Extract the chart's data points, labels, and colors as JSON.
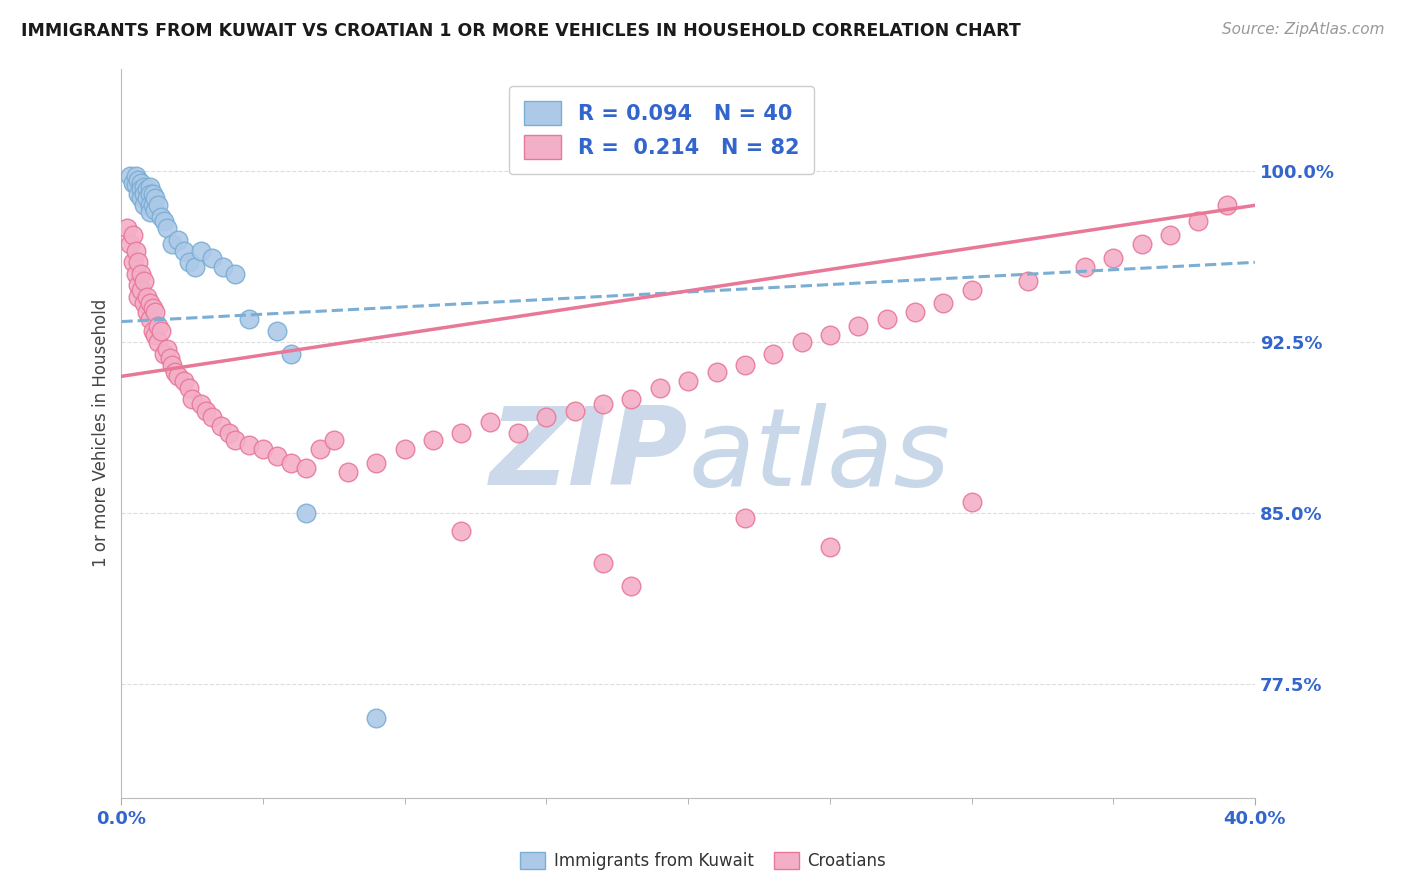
{
  "title": "IMMIGRANTS FROM KUWAIT VS CROATIAN 1 OR MORE VEHICLES IN HOUSEHOLD CORRELATION CHART",
  "source": "Source: ZipAtlas.com",
  "ylabel": "1 or more Vehicles in Household",
  "ytick_labels": [
    "77.5%",
    "85.0%",
    "92.5%",
    "100.0%"
  ],
  "ytick_values": [
    0.775,
    0.85,
    0.925,
    1.0
  ],
  "xlim": [
    0.0,
    0.4
  ],
  "ylim": [
    0.725,
    1.045
  ],
  "kuwait_R": 0.094,
  "kuwait_N": 40,
  "croatian_R": 0.214,
  "croatian_N": 82,
  "kuwait_color": "#adc9e8",
  "croatian_color": "#f4afc8",
  "kuwait_edge_color": "#7aaed4",
  "croatian_edge_color": "#e87898",
  "kuwait_line_color": "#7aaed4",
  "croatian_line_color": "#e87898",
  "watermark_zip_color": "#d8e8f5",
  "watermark_atlas_color": "#d0dff0",
  "title_color": "#1a1a1a",
  "source_color": "#999999",
  "axis_label_color": "#3366cc",
  "tick_color": "#888888",
  "grid_color": "#dddddd",
  "legend_text_color": "#3366cc",
  "bottom_legend_text_color": "#333333",
  "kuwait_x": [
    0.003,
    0.004,
    0.005,
    0.005,
    0.006,
    0.006,
    0.007,
    0.007,
    0.007,
    0.008,
    0.008,
    0.008,
    0.009,
    0.009,
    0.01,
    0.01,
    0.01,
    0.01,
    0.011,
    0.011,
    0.012,
    0.012,
    0.013,
    0.014,
    0.015,
    0.016,
    0.018,
    0.02,
    0.022,
    0.024,
    0.026,
    0.028,
    0.032,
    0.036,
    0.04,
    0.045,
    0.055,
    0.06,
    0.065,
    0.09
  ],
  "kuwait_y": [
    0.998,
    0.995,
    0.998,
    0.994,
    0.996,
    0.99,
    0.995,
    0.992,
    0.988,
    0.993,
    0.99,
    0.985,
    0.992,
    0.988,
    0.993,
    0.99,
    0.985,
    0.982,
    0.99,
    0.985,
    0.988,
    0.983,
    0.985,
    0.98,
    0.978,
    0.975,
    0.968,
    0.97,
    0.965,
    0.96,
    0.958,
    0.965,
    0.962,
    0.958,
    0.955,
    0.935,
    0.93,
    0.92,
    0.85,
    0.76
  ],
  "croatian_x": [
    0.002,
    0.003,
    0.004,
    0.004,
    0.005,
    0.005,
    0.006,
    0.006,
    0.006,
    0.007,
    0.007,
    0.008,
    0.008,
    0.009,
    0.009,
    0.01,
    0.01,
    0.011,
    0.011,
    0.012,
    0.012,
    0.013,
    0.013,
    0.014,
    0.015,
    0.016,
    0.017,
    0.018,
    0.019,
    0.02,
    0.022,
    0.024,
    0.025,
    0.028,
    0.03,
    0.032,
    0.035,
    0.038,
    0.04,
    0.045,
    0.05,
    0.055,
    0.06,
    0.065,
    0.07,
    0.075,
    0.08,
    0.09,
    0.1,
    0.11,
    0.12,
    0.13,
    0.14,
    0.15,
    0.16,
    0.17,
    0.18,
    0.19,
    0.2,
    0.21,
    0.22,
    0.23,
    0.24,
    0.25,
    0.26,
    0.27,
    0.28,
    0.29,
    0.3,
    0.32,
    0.34,
    0.35,
    0.36,
    0.37,
    0.38,
    0.39,
    0.3,
    0.25,
    0.18,
    0.22,
    0.17,
    0.12
  ],
  "croatian_y": [
    0.975,
    0.968,
    0.96,
    0.972,
    0.955,
    0.965,
    0.95,
    0.96,
    0.945,
    0.955,
    0.948,
    0.952,
    0.942,
    0.945,
    0.938,
    0.942,
    0.935,
    0.94,
    0.93,
    0.938,
    0.928,
    0.932,
    0.925,
    0.93,
    0.92,
    0.922,
    0.918,
    0.915,
    0.912,
    0.91,
    0.908,
    0.905,
    0.9,
    0.898,
    0.895,
    0.892,
    0.888,
    0.885,
    0.882,
    0.88,
    0.878,
    0.875,
    0.872,
    0.87,
    0.878,
    0.882,
    0.868,
    0.872,
    0.878,
    0.882,
    0.885,
    0.89,
    0.885,
    0.892,
    0.895,
    0.898,
    0.9,
    0.905,
    0.908,
    0.912,
    0.915,
    0.92,
    0.925,
    0.928,
    0.932,
    0.935,
    0.938,
    0.942,
    0.948,
    0.952,
    0.958,
    0.962,
    0.968,
    0.972,
    0.978,
    0.985,
    0.855,
    0.835,
    0.818,
    0.848,
    0.828,
    0.842
  ],
  "kuwait_trend_x0": 0.0,
  "kuwait_trend_y0": 0.934,
  "kuwait_trend_x1": 0.4,
  "kuwait_trend_y1": 0.96,
  "croatian_trend_x0": 0.0,
  "croatian_trend_y0": 0.91,
  "croatian_trend_x1": 0.4,
  "croatian_trend_y1": 0.985
}
